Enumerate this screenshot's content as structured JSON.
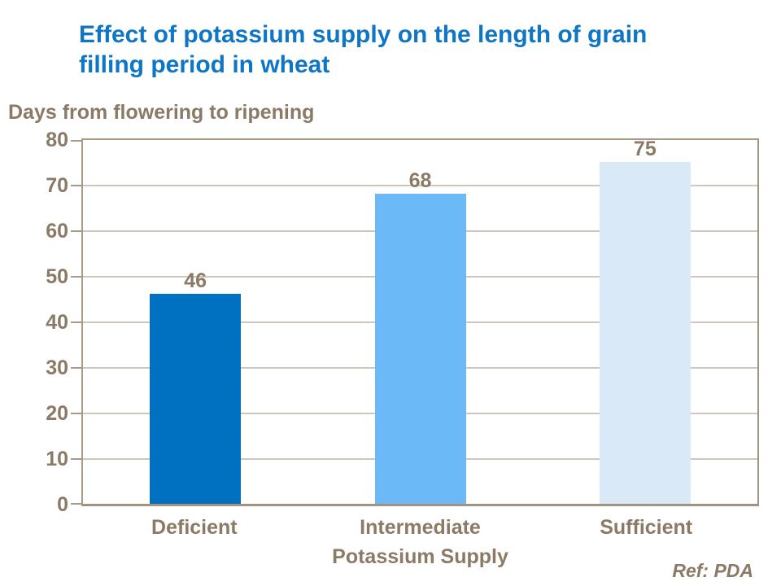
{
  "slide": {
    "title": "Effect of potassium supply on the length of grain filling period in wheat",
    "footer_ref": "Ref: PDA"
  },
  "chart_data": {
    "type": "bar",
    "title": "Effect of potassium supply on the length of grain filling period in wheat",
    "categories": [
      "Deficient",
      "Intermediate",
      "Sufficient"
    ],
    "values": [
      46,
      68,
      75
    ],
    "data_labels": [
      "46",
      "68",
      "75"
    ],
    "xlabel": "Potassium Supply",
    "ylabel": "Days from flowering to ripening",
    "ylim": [
      0,
      80
    ],
    "yticks": [
      0,
      10,
      20,
      30,
      40,
      50,
      60,
      70,
      80
    ],
    "grid": true,
    "legend_position": "none",
    "bar_colors": [
      "#0070c0",
      "#6cb9f8",
      "#d9e9f8"
    ]
  },
  "colors": {
    "title_text": "#0e76c4",
    "chart_text": "#8a7a66",
    "axis_line": "#a89a89",
    "gridline": "#cfc6b8",
    "background": "#ffffff"
  }
}
